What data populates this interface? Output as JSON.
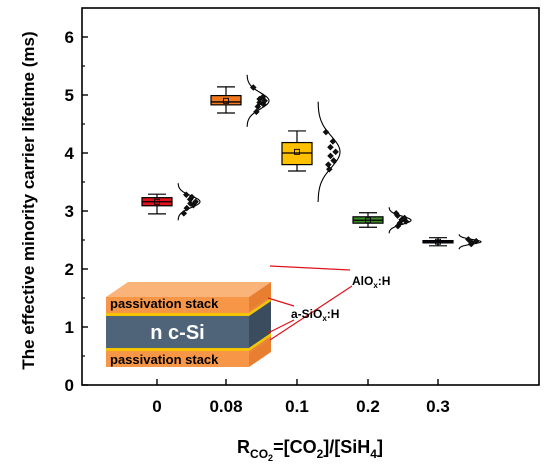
{
  "chart_data": {
    "type": "box",
    "title": "",
    "ylabel": "The effective minority carrier lifetime (ms)",
    "xlabel": {
      "main": "R",
      "sub_main": "CO",
      "sub_sub": "2",
      "eq": "=[CO",
      "sub1": "2",
      "mid": "]/[SiH",
      "sub2": "4",
      "end": "]"
    },
    "ylim": [
      0,
      6.5
    ],
    "yticks": [
      0,
      1,
      2,
      3,
      4,
      5,
      6
    ],
    "categories": [
      "0",
      "0.08",
      "0.1",
      "0.2",
      "0.3"
    ],
    "grid": false,
    "boxes": [
      {
        "category": "0",
        "color": "#e0121b",
        "min": 2.95,
        "q1": 3.09,
        "median": 3.16,
        "mean": 3.16,
        "q3": 3.23,
        "max": 3.29,
        "points": [
          2.96,
          3.05,
          3.1,
          3.13,
          3.16,
          3.2,
          3.24,
          3.28
        ],
        "curve_sd": 0.1
      },
      {
        "category": "0.08",
        "color": "#f07820",
        "min": 4.69,
        "q1": 4.83,
        "median": 4.88,
        "mean": 4.9,
        "q3": 4.99,
        "max": 5.14,
        "points": [
          4.71,
          4.8,
          4.84,
          4.87,
          4.9,
          4.93,
          4.97,
          5.13
        ],
        "curve_sd": 0.14
      },
      {
        "category": "0.1",
        "color": "#ffc000",
        "min": 3.69,
        "q1": 3.8,
        "median": 4.0,
        "mean": 4.02,
        "q3": 4.18,
        "max": 4.38,
        "points": [
          3.72,
          3.8,
          3.87,
          3.95,
          4.02,
          4.1,
          4.2,
          4.36
        ],
        "curve_sd": 0.27
      },
      {
        "category": "0.2",
        "color": "#3a8a2a",
        "min": 2.72,
        "q1": 2.79,
        "median": 2.84,
        "mean": 2.84,
        "q3": 2.9,
        "max": 2.97,
        "points": [
          2.74,
          2.79,
          2.82,
          2.85,
          2.88,
          2.92,
          2.96
        ],
        "curve_sd": 0.07
      },
      {
        "category": "0.3",
        "color": "#1f4aa0",
        "min": 2.4,
        "q1": 2.45,
        "median": 2.47,
        "mean": 2.47,
        "q3": 2.49,
        "max": 2.54,
        "points": [
          2.43,
          2.46,
          2.48,
          2.51
        ],
        "curve_sd": 0.04
      }
    ]
  },
  "inset": {
    "core_label": "n c-Si",
    "stack_top_label": "passivation stack",
    "stack_bottom_label": "passivation stack",
    "sio_label": "a-SiO",
    "sio_sub": "x",
    "sio_end": ":H",
    "alo_label": "AlO",
    "alo_sub": "x",
    "alo_end": ":H",
    "colors": {
      "stack": "#f79646",
      "stack_top": "#fab47a",
      "stack_side": "#e87f30",
      "sio": "#f5c400",
      "alo": "#f79646",
      "core_front": "#4f6479",
      "core_side": "#3b4c5e",
      "leader": "#e0121b"
    }
  }
}
